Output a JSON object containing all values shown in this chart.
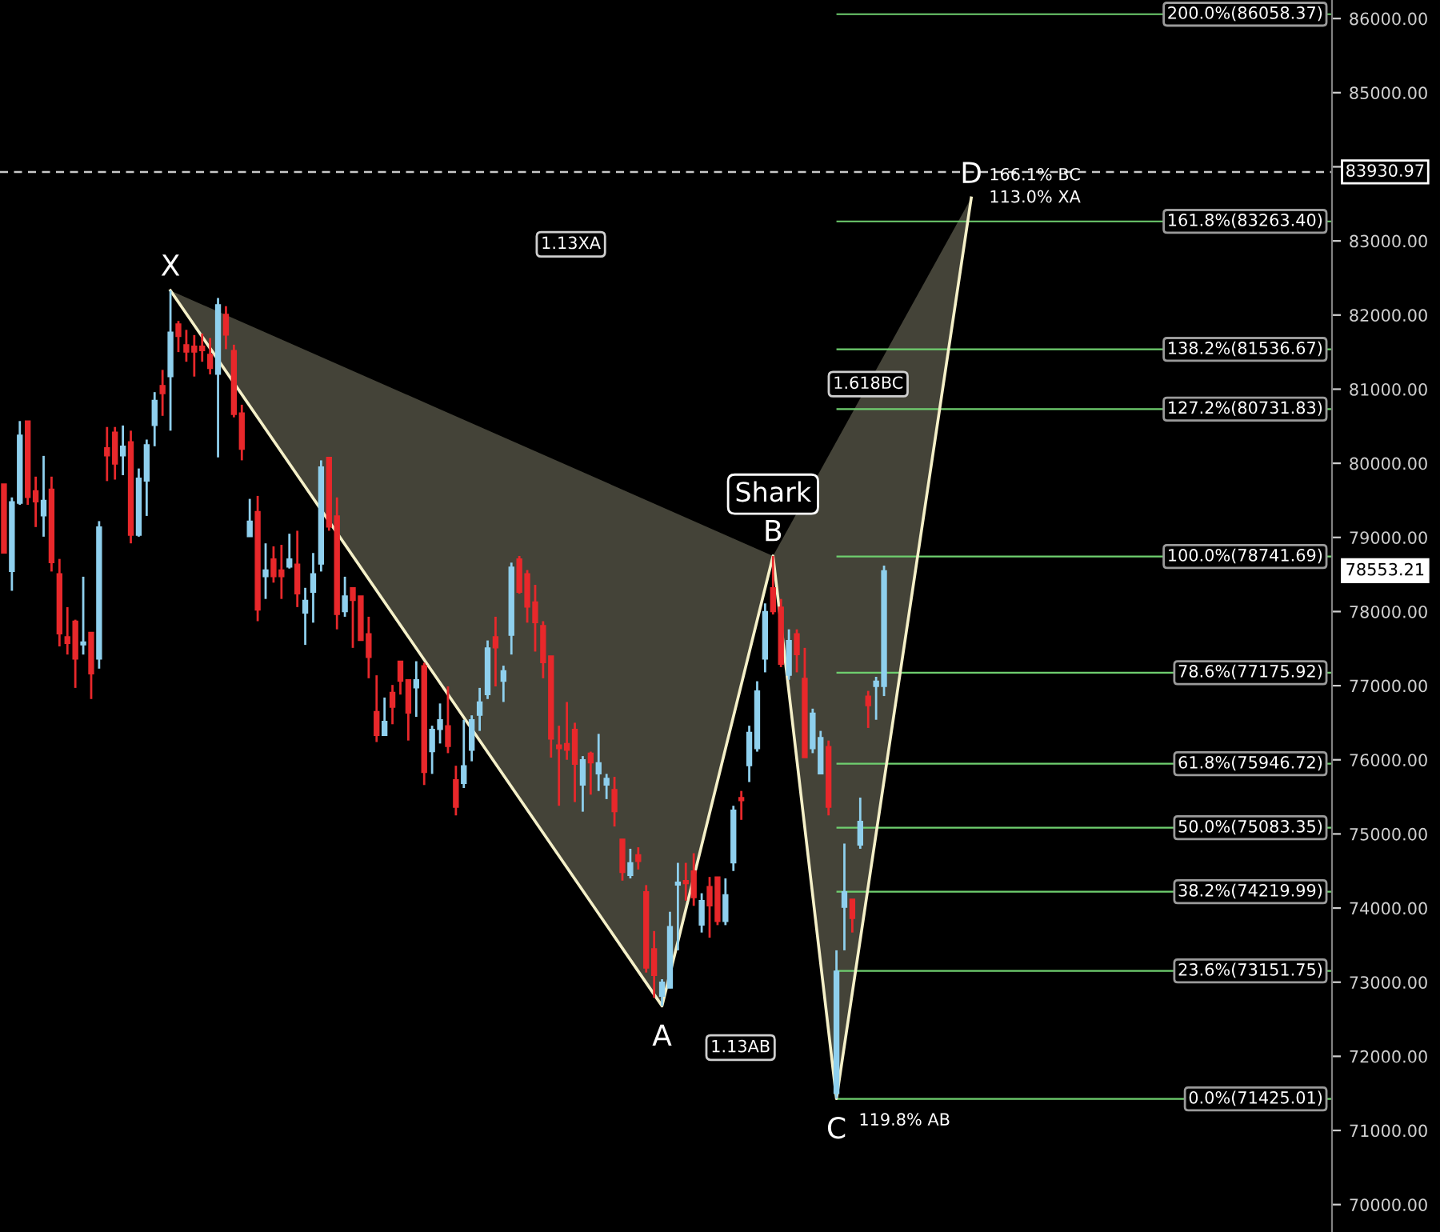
{
  "chart_data": {
    "type": "candlestick",
    "categories": [
      null,
      null,
      null,
      null,
      null,
      null,
      null,
      null,
      null,
      null,
      null,
      null,
      null,
      null,
      null,
      null,
      null,
      null,
      null,
      null,
      null,
      null,
      null,
      null,
      null,
      null,
      null,
      null,
      null,
      null,
      null,
      null,
      null,
      null,
      null,
      null,
      null,
      null,
      null,
      null,
      null,
      null,
      null,
      null,
      null,
      null,
      null,
      null,
      null,
      null,
      null,
      null,
      null,
      null,
      null,
      null,
      null,
      null,
      null,
      null,
      null,
      null,
      null,
      null,
      null,
      null,
      null,
      null,
      null,
      null,
      null,
      null,
      null,
      null,
      null,
      null,
      null,
      null,
      null,
      null,
      null,
      null,
      null,
      null,
      null,
      null,
      null,
      null,
      null,
      null,
      null,
      null,
      null,
      null,
      null,
      null,
      null,
      null,
      null,
      null,
      null,
      null,
      null,
      null,
      null,
      null,
      null,
      null,
      null,
      null,
      null,
      null,
      null,
      null,
      null,
      null,
      null,
      null,
      null,
      null,
      null,
      null,
      null,
      null,
      null,
      null,
      null,
      null,
      null,
      null,
      null,
      null,
      null,
      null,
      null,
      null,
      null,
      null,
      null,
      null,
      null,
      null,
      null,
      null,
      null,
      null,
      null,
      null,
      null,
      null,
      null,
      null,
      null,
      null,
      null,
      null,
      null,
      null,
      null,
      null,
      null,
      null,
      null,
      null,
      null,
      null,
      null,
      null
    ],
    "ohlc": [
      [
        79720,
        79720,
        78790,
        78790
      ],
      [
        78540,
        79540,
        78280,
        79480
      ],
      [
        79460,
        80570,
        79440,
        80380
      ],
      [
        80570,
        80570,
        79440,
        79540
      ],
      [
        79630,
        79820,
        79140,
        79480
      ],
      [
        79290,
        80100,
        79010,
        79500
      ],
      [
        79650,
        79820,
        78540,
        78660
      ],
      [
        78510,
        78710,
        77530,
        77700
      ],
      [
        77660,
        78060,
        77420,
        77570
      ],
      [
        77870,
        77890,
        76970,
        77360
      ],
      [
        77550,
        78470,
        77420,
        77590
      ],
      [
        77720,
        77720,
        76820,
        77160
      ],
      [
        77360,
        79220,
        77230,
        79140
      ],
      [
        80210,
        80490,
        79760,
        80100
      ],
      [
        80420,
        80490,
        79780,
        79990
      ],
      [
        80100,
        80510,
        79840,
        80230
      ],
      [
        80290,
        80440,
        78920,
        79030
      ],
      [
        79030,
        79930,
        79010,
        79800
      ],
      [
        79760,
        80320,
        79290,
        80250
      ],
      [
        80510,
        80960,
        80230,
        80850
      ],
      [
        81050,
        81260,
        80640,
        80940
      ],
      [
        81170,
        82330,
        80440,
        81770
      ],
      [
        81880,
        81920,
        81500,
        81710
      ],
      [
        81600,
        81800,
        81370,
        81500
      ],
      [
        81580,
        81730,
        81170,
        81500
      ],
      [
        81580,
        81750,
        81370,
        81520
      ],
      [
        81470,
        81690,
        81200,
        81280
      ],
      [
        81200,
        82230,
        80080,
        82140
      ],
      [
        82010,
        82120,
        81540,
        81730
      ],
      [
        81520,
        81600,
        80620,
        80660
      ],
      [
        80680,
        80790,
        80040,
        80190
      ],
      [
        79010,
        79520,
        79010,
        79220
      ],
      [
        79350,
        79560,
        77870,
        78020
      ],
      [
        78470,
        78920,
        78170,
        78560
      ],
      [
        78710,
        78880,
        78390,
        78470
      ],
      [
        78560,
        78900,
        78170,
        78470
      ],
      [
        78600,
        79050,
        78580,
        78710
      ],
      [
        78640,
        79090,
        78060,
        78240
      ],
      [
        77980,
        78320,
        77550,
        78150
      ],
      [
        78260,
        78790,
        77850,
        78510
      ],
      [
        78640,
        80040,
        78540,
        79950
      ],
      [
        80080,
        80080,
        79090,
        79140
      ],
      [
        79290,
        79540,
        77760,
        77960
      ],
      [
        78000,
        78470,
        77930,
        78210
      ],
      [
        78320,
        78320,
        77510,
        78150
      ],
      [
        78210,
        78210,
        77610,
        77610
      ],
      [
        77700,
        77930,
        77100,
        77380
      ],
      [
        76650,
        77140,
        76240,
        76330
      ],
      [
        76330,
        76840,
        76330,
        76520
      ],
      [
        76910,
        77010,
        76480,
        76710
      ],
      [
        77330,
        77330,
        76880,
        77060
      ],
      [
        77080,
        77080,
        76260,
        76630
      ],
      [
        76970,
        77330,
        76580,
        77080
      ],
      [
        77270,
        77310,
        75660,
        75830
      ],
      [
        76110,
        76460,
        75810,
        76410
      ],
      [
        76410,
        76760,
        76220,
        76540
      ],
      [
        76460,
        76990,
        76090,
        76180
      ],
      [
        75730,
        75920,
        75250,
        75360
      ],
      [
        75680,
        76540,
        75620,
        75920
      ],
      [
        76130,
        76600,
        75980,
        76540
      ],
      [
        76600,
        76970,
        76390,
        76780
      ],
      [
        76880,
        77610,
        76820,
        77510
      ],
      [
        77660,
        77930,
        76990,
        77510
      ],
      [
        77060,
        77270,
        76780,
        77200
      ],
      [
        77680,
        78660,
        77420,
        78600
      ],
      [
        78710,
        78750,
        78240,
        78260
      ],
      [
        78510,
        78560,
        77850,
        78060
      ],
      [
        78130,
        78360,
        77460,
        77850
      ],
      [
        77810,
        77870,
        77100,
        77310
      ],
      [
        77400,
        77400,
        76030,
        76280
      ],
      [
        76200,
        76460,
        75380,
        76150
      ],
      [
        76220,
        76780,
        76000,
        76130
      ],
      [
        76410,
        76500,
        75430,
        75940
      ],
      [
        75660,
        76050,
        75300,
        76000
      ],
      [
        76090,
        76110,
        75530,
        75960
      ],
      [
        75810,
        76350,
        75580,
        75960
      ],
      [
        75660,
        75810,
        75470,
        75750
      ],
      [
        75600,
        75770,
        75100,
        75300
      ],
      [
        74930,
        74930,
        74370,
        74480
      ],
      [
        74440,
        74800,
        74400,
        74610
      ],
      [
        74720,
        74820,
        74520,
        74630
      ],
      [
        74220,
        74310,
        73130,
        73190
      ],
      [
        73450,
        73690,
        72790,
        73090
      ],
      [
        72810,
        73040,
        72680,
        73000
      ],
      [
        72920,
        73950,
        72920,
        73750
      ],
      [
        74310,
        74610,
        73430,
        74350
      ],
      [
        74370,
        74610,
        74100,
        74330
      ],
      [
        74500,
        74740,
        74030,
        74140
      ],
      [
        73770,
        74200,
        73670,
        74100
      ],
      [
        74290,
        74420,
        73600,
        74030
      ],
      [
        74420,
        74420,
        73770,
        73820
      ],
      [
        73820,
        74400,
        73770,
        74180
      ],
      [
        74610,
        75380,
        74500,
        75320
      ],
      [
        75490,
        75580,
        75190,
        75450
      ],
      [
        75920,
        76460,
        75700,
        76370
      ],
      [
        76150,
        77060,
        76110,
        76930
      ],
      [
        77360,
        78110,
        77180,
        78000
      ],
      [
        78320,
        78750,
        77960,
        78000
      ],
      [
        78060,
        78170,
        77250,
        77290
      ],
      [
        77140,
        77760,
        77080,
        77610
      ],
      [
        77700,
        77760,
        77180,
        77420
      ],
      [
        77100,
        77510,
        76030,
        76030
      ],
      [
        76150,
        76690,
        76090,
        76630
      ],
      [
        75810,
        76390,
        75810,
        76300
      ],
      [
        76180,
        76260,
        75250,
        75360
      ],
      [
        71500,
        73430,
        71430,
        73150
      ],
      [
        74010,
        74870,
        73430,
        74220
      ],
      [
        74120,
        74120,
        73670,
        73860
      ],
      [
        74850,
        75490,
        74800,
        75170
      ],
      [
        76860,
        76930,
        76430,
        76730
      ],
      [
        76990,
        77120,
        76540,
        77060
      ],
      [
        76990,
        78620,
        76860,
        78550
      ],
      null,
      null,
      null,
      null,
      null,
      null,
      null,
      null,
      null,
      null,
      null,
      null,
      null,
      null,
      null,
      null,
      null,
      null,
      null,
      null,
      null,
      null,
      null,
      null,
      null,
      null,
      null,
      null,
      null,
      null,
      null,
      null,
      null,
      null,
      null,
      null,
      null,
      null,
      null,
      null,
      null,
      null,
      null,
      null,
      null,
      null,
      null,
      null,
      null,
      null,
      null,
      null,
      null,
      null,
      null,
      null
    ],
    "colors": [
      "#e8282b",
      "#8fd0ee",
      "#8fd0ee",
      "#e8282b",
      "#e8282b",
      "#8fd0ee",
      "#e8282b",
      "#e8282b",
      "#e8282b",
      "#e8282b",
      "#8fd0ee",
      "#e8282b",
      "#8fd0ee",
      "#e8282b",
      "#e8282b",
      "#8fd0ee",
      "#e8282b",
      "#8fd0ee",
      "#8fd0ee",
      "#8fd0ee",
      "#e8282b",
      "#8fd0ee",
      "#e8282b",
      "#e8282b",
      "#e8282b",
      "#e8282b",
      "#e8282b",
      "#8fd0ee",
      "#e8282b",
      "#e8282b",
      "#e8282b",
      "#8fd0ee",
      "#e8282b",
      "#8fd0ee",
      "#e8282b",
      "#e8282b",
      "#8fd0ee",
      "#e8282b",
      "#8fd0ee",
      "#8fd0ee",
      "#8fd0ee",
      "#e8282b",
      "#e8282b",
      "#8fd0ee",
      "#e8282b",
      "#e8282b",
      "#e8282b",
      "#e8282b",
      "#8fd0ee",
      "#e8282b",
      "#e8282b",
      "#e8282b",
      "#8fd0ee",
      "#e8282b",
      "#8fd0ee",
      "#8fd0ee",
      "#e8282b",
      "#e8282b",
      "#8fd0ee",
      "#8fd0ee",
      "#8fd0ee",
      "#8fd0ee",
      "#e8282b",
      "#8fd0ee",
      "#8fd0ee",
      "#e8282b",
      "#e8282b",
      "#e8282b",
      "#e8282b",
      "#e8282b",
      "#e8282b",
      "#e8282b",
      "#e8282b",
      "#8fd0ee",
      "#e8282b",
      "#8fd0ee",
      "#8fd0ee",
      "#e8282b",
      "#e8282b",
      "#8fd0ee",
      "#e8282b",
      "#e8282b",
      "#e8282b",
      "#8fd0ee",
      "#8fd0ee",
      "#8fd0ee",
      "#e8282b",
      "#e8282b",
      "#8fd0ee",
      "#e8282b",
      "#e8282b",
      "#8fd0ee",
      "#8fd0ee",
      "#e8282b",
      "#8fd0ee",
      "#8fd0ee",
      "#8fd0ee",
      "#e8282b",
      "#e8282b",
      "#8fd0ee",
      "#e8282b",
      "#e8282b",
      "#8fd0ee",
      "#8fd0ee",
      "#e8282b",
      "#8fd0ee",
      "#8fd0ee",
      "#e8282b",
      "#8fd0ee",
      "#e8282b",
      "#8fd0ee",
      "#8fd0ee",
      null,
      null,
      null,
      null,
      null,
      null,
      null,
      null,
      null,
      null,
      null,
      null,
      null,
      null,
      null,
      null,
      null,
      null,
      null,
      null,
      null,
      null,
      null,
      null,
      null,
      null,
      null,
      null,
      null,
      null,
      null,
      null,
      null,
      null,
      null,
      null,
      null,
      null,
      null,
      null,
      null,
      null,
      null,
      null,
      null,
      null,
      null,
      null,
      null,
      null,
      null,
      null,
      null,
      null,
      null,
      null
    ],
    "series": [
      {
        "name": "Shark",
        "type": "line",
        "color": "#f5f0c8",
        "values": [
          null,
          null,
          null,
          null,
          null,
          null,
          null,
          null,
          null,
          null,
          null,
          null,
          null,
          null,
          null,
          null,
          null,
          null,
          null,
          null,
          null,
          82330,
          null,
          null,
          null,
          null,
          null,
          null,
          null,
          null,
          null,
          null,
          null,
          null,
          null,
          null,
          null,
          null,
          null,
          null,
          null,
          null,
          null,
          null,
          null,
          null,
          null,
          null,
          null,
          null,
          null,
          null,
          null,
          null,
          null,
          null,
          null,
          null,
          null,
          null,
          null,
          null,
          null,
          null,
          null,
          null,
          null,
          null,
          null,
          null,
          null,
          null,
          null,
          null,
          null,
          null,
          null,
          null,
          null,
          null,
          null,
          null,
          null,
          72680,
          null,
          null,
          null,
          null,
          null,
          null,
          null,
          null,
          null,
          null,
          null,
          null,
          null,
          78750,
          null,
          null,
          null,
          null,
          null,
          null,
          null,
          71430,
          null,
          null,
          null,
          null,
          null,
          null,
          null,
          null,
          null,
          null,
          null,
          null,
          null,
          null,
          null,
          null,
          83580,
          null,
          null,
          null,
          null,
          null,
          null,
          null,
          null,
          null,
          null,
          null,
          null,
          null,
          null,
          null,
          null,
          null,
          null,
          null,
          null,
          null,
          null,
          null,
          null,
          null,
          null,
          null,
          null,
          null,
          null,
          null,
          null,
          null,
          null,
          null,
          null,
          null,
          null,
          null,
          null,
          null,
          null,
          null,
          null,
          null
        ],
        "value_labels": [
          null,
          null,
          null,
          null,
          null,
          null,
          null,
          null,
          null,
          null,
          null,
          null,
          null,
          null,
          null,
          null,
          null,
          null,
          null,
          null,
          null,
          "X",
          null,
          null,
          null,
          null,
          null,
          null,
          null,
          null,
          null,
          null,
          null,
          null,
          null,
          null,
          null,
          null,
          null,
          null,
          null,
          null,
          null,
          null,
          null,
          null,
          null,
          null,
          null,
          null,
          null,
          null,
          null,
          null,
          null,
          null,
          null,
          null,
          null,
          null,
          null,
          null,
          null,
          null,
          null,
          null,
          null,
          null,
          null,
          null,
          null,
          null,
          null,
          null,
          null,
          null,
          null,
          null,
          null,
          null,
          null,
          null,
          null,
          "A",
          null,
          null,
          null,
          null,
          null,
          null,
          null,
          null,
          null,
          null,
          null,
          null,
          null,
          "B",
          null,
          null,
          null,
          null,
          null,
          null,
          null,
          "C",
          null,
          null,
          null,
          null,
          null,
          null,
          null,
          null,
          null,
          null,
          null,
          null,
          null,
          null,
          null,
          null,
          "D",
          null,
          null,
          null,
          null,
          null,
          null,
          null,
          null,
          null,
          null,
          null,
          null,
          null,
          null,
          null,
          null,
          null,
          null,
          null,
          null,
          null,
          null,
          null,
          null,
          null,
          null,
          null,
          null,
          null,
          null,
          null,
          null,
          null,
          null,
          null,
          null,
          null,
          null,
          null,
          null,
          null,
          null,
          null,
          null,
          null
        ]
      }
    ],
    "ylim": [
      69630,
      86250
    ],
    "yticks": [
      {
        "value": 70000,
        "label": "70000.00"
      },
      {
        "value": 71000,
        "label": "71000.00"
      },
      {
        "value": 72000,
        "label": "72000.00"
      },
      {
        "value": 73000,
        "label": "73000.00"
      },
      {
        "value": 74000,
        "label": "74000.00"
      },
      {
        "value": 75000,
        "label": "75000.00"
      },
      {
        "value": 76000,
        "label": "76000.00"
      },
      {
        "value": 77000,
        "label": "77000.00"
      },
      {
        "value": 78000,
        "label": "78000.00"
      },
      {
        "value": 79000,
        "label": "79000.00"
      },
      {
        "value": 80000,
        "label": "80000.00"
      },
      {
        "value": 81000,
        "label": "81000.00"
      },
      {
        "value": 82000,
        "label": "82000.00"
      },
      {
        "value": 83000,
        "label": "83000.00"
      },
      {
        "value": 84000,
        "label": null
      },
      {
        "value": 85000,
        "label": "85000.00"
      },
      {
        "value": 86000,
        "label": "86000.00"
      }
    ],
    "tick_labels": "y",
    "ref_lines": [
      {
        "axis": "y",
        "value": 86058.37,
        "label": "200.0%(86058.37)",
        "color": "#6fcf6f"
      },
      {
        "axis": "y",
        "value": 83263.4,
        "label": "161.8%(83263.40)",
        "color": "#6fcf6f"
      },
      {
        "axis": "y",
        "value": 81536.67,
        "label": "138.2%(81536.67)",
        "color": "#6fcf6f"
      },
      {
        "axis": "y",
        "value": 80731.83,
        "label": "127.2%(80731.83)",
        "color": "#6fcf6f"
      },
      {
        "axis": "y",
        "value": 78741.69,
        "label": "100.0%(78741.69)",
        "color": "#6fcf6f"
      },
      {
        "axis": "y",
        "value": 77175.92,
        "label": "78.6%(77175.92)",
        "color": "#6fcf6f"
      },
      {
        "axis": "y",
        "value": 75946.72,
        "label": "61.8%(75946.72)",
        "color": "#6fcf6f"
      },
      {
        "axis": "y",
        "value": 75083.35,
        "label": "50.0%(75083.35)",
        "color": "#6fcf6f"
      },
      {
        "axis": "y",
        "value": 74219.99,
        "label": "38.2%(74219.99)",
        "color": "#6fcf6f"
      },
      {
        "axis": "y",
        "value": 73151.75,
        "label": "23.6%(73151.75)",
        "color": "#6fcf6f"
      },
      {
        "axis": "y",
        "value": 71425.01,
        "label": "0.0%(71425.01)",
        "color": "#6fcf6f"
      },
      {
        "axis": "y",
        "value": 83930.97,
        "label": "83930.97",
        "color": "#c8c8c8",
        "line_style": "dashed"
      }
    ],
    "annotations": [
      "1.13XA",
      "1.618BC",
      "1.13AB",
      "166.1% BC",
      "113.0% XA",
      "119.8% AB",
      "78553.21"
    ],
    "grid": false,
    "legend": false
  }
}
